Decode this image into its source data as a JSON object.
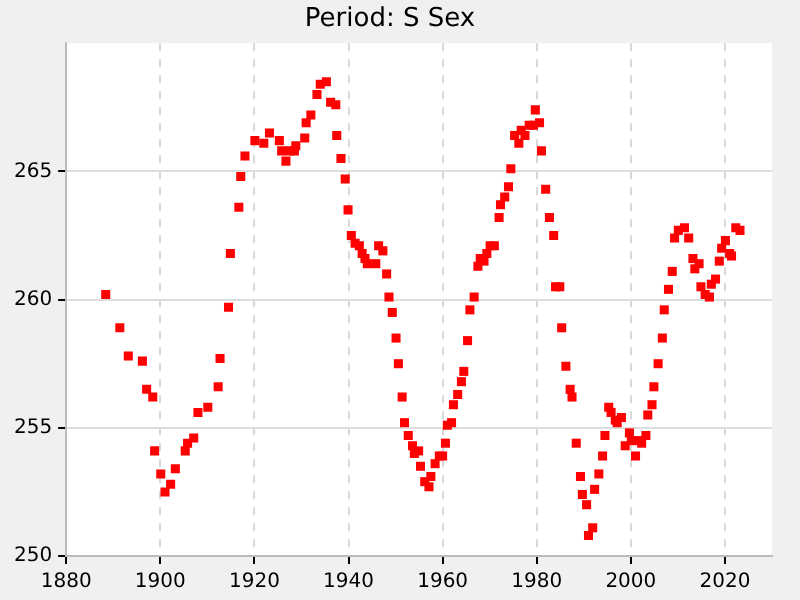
{
  "chart_data": {
    "type": "scatter",
    "title": "Period: S Sex",
    "marker": "square",
    "grid": true,
    "legend": false,
    "xlim": [
      1880,
      2030
    ],
    "xticks": [
      1880,
      1900,
      1920,
      1940,
      1960,
      1980,
      2000,
      2020
    ],
    "ylim": [
      250,
      270
    ],
    "yticks": [
      250,
      255,
      260,
      265
    ],
    "series": [
      {
        "color": "#ff0000",
        "x": [
          1888.4,
          1891.4,
          1893.2,
          1896.2,
          1897.1,
          1898.4,
          1898.8,
          1900.1,
          1901.0,
          1902.2,
          1903.2,
          1905.3,
          1905.8,
          1907.1,
          1908.0,
          1910.1,
          1912.3,
          1912.7,
          1914.5,
          1914.9,
          1916.7,
          1917.1,
          1918.0,
          1920.1,
          1922.0,
          1923.2,
          1925.3,
          1925.8,
          1926.7,
          1927.5,
          1928.5,
          1928.8,
          1930.7,
          1931.0,
          1932.0,
          1933.3,
          1934.0,
          1935.3,
          1936.2,
          1937.3,
          1937.5,
          1938.4,
          1939.3,
          1939.9,
          1940.6,
          1941.4,
          1942.3,
          1942.9,
          1943.5,
          1944.0,
          1945.8,
          1946.4,
          1947.3,
          1948.1,
          1948.6,
          1949.3,
          1950.1,
          1950.6,
          1951.4,
          1951.9,
          1952.7,
          1953.6,
          1954.0,
          1954.9,
          1955.3,
          1956.2,
          1957.1,
          1957.5,
          1958.4,
          1959.3,
          1960.0,
          1960.6,
          1961.0,
          1961.9,
          1962.3,
          1963.2,
          1964.0,
          1964.5,
          1965.3,
          1965.8,
          1966.7,
          1967.5,
          1968.0,
          1968.8,
          1969.4,
          1970.1,
          1971.0,
          1972.0,
          1972.3,
          1973.2,
          1974.0,
          1974.5,
          1975.3,
          1976.2,
          1976.7,
          1977.5,
          1978.4,
          1979.3,
          1979.7,
          1980.6,
          1981.0,
          1981.9,
          1982.7,
          1983.6,
          1984.0,
          1984.9,
          1985.3,
          1986.2,
          1987.1,
          1987.5,
          1988.4,
          1989.3,
          1989.7,
          1990.6,
          1991.0,
          1991.9,
          1992.3,
          1993.2,
          1994.0,
          1994.5,
          1995.3,
          1995.8,
          1996.7,
          1997.1,
          1998.0,
          1998.8,
          1999.7,
          2000.1,
          2001.0,
          2001.4,
          2002.3,
          2003.2,
          2003.6,
          2004.5,
          2004.9,
          2005.8,
          2006.7,
          2007.1,
          2008.0,
          2008.8,
          2009.3,
          2010.1,
          2011.4,
          2012.3,
          2013.2,
          2013.6,
          2014.5,
          2014.9,
          2015.8,
          2016.7,
          2017.1,
          2018.0,
          2018.8,
          2019.3,
          2020.1,
          2021.0,
          2021.4,
          2022.3,
          2023.2
        ],
        "values": [
          260.2,
          258.9,
          257.8,
          257.6,
          256.5,
          256.2,
          254.1,
          253.2,
          252.5,
          252.8,
          253.4,
          254.1,
          254.4,
          254.6,
          255.6,
          255.8,
          256.6,
          257.7,
          259.7,
          261.8,
          263.6,
          264.8,
          265.6,
          266.2,
          266.1,
          266.5,
          266.2,
          265.8,
          265.4,
          265.8,
          265.8,
          266.0,
          266.3,
          266.9,
          267.2,
          268.0,
          268.4,
          268.5,
          267.7,
          267.6,
          266.4,
          265.5,
          264.7,
          263.5,
          262.5,
          262.2,
          262.1,
          261.8,
          261.6,
          261.4,
          261.4,
          262.1,
          261.9,
          261.0,
          260.1,
          259.5,
          258.5,
          257.5,
          256.2,
          255.2,
          254.7,
          254.3,
          254.0,
          254.1,
          253.5,
          252.9,
          252.7,
          253.1,
          253.6,
          253.9,
          253.9,
          254.4,
          255.1,
          255.2,
          255.9,
          256.3,
          256.8,
          257.2,
          258.4,
          259.6,
          260.1,
          261.3,
          261.6,
          261.5,
          261.8,
          262.1,
          262.1,
          263.2,
          263.7,
          264.0,
          264.4,
          265.1,
          266.4,
          266.1,
          266.6,
          266.4,
          266.8,
          266.8,
          267.4,
          266.9,
          265.8,
          264.3,
          263.2,
          262.5,
          260.5,
          260.5,
          258.9,
          257.4,
          256.5,
          256.2,
          254.4,
          253.1,
          252.4,
          252.0,
          250.8,
          251.1,
          252.6,
          253.2,
          253.9,
          254.7,
          255.8,
          255.6,
          255.3,
          255.2,
          255.4,
          254.3,
          254.8,
          254.5,
          253.9,
          254.5,
          254.4,
          254.7,
          255.5,
          255.9,
          256.6,
          257.5,
          258.5,
          259.6,
          260.4,
          261.1,
          262.4,
          262.7,
          262.8,
          262.4,
          261.6,
          261.2,
          261.4,
          260.5,
          260.2,
          260.1,
          260.6,
          260.8,
          261.5,
          262.0,
          262.3,
          261.8,
          261.7,
          262.8,
          262.7
        ]
      }
    ]
  }
}
